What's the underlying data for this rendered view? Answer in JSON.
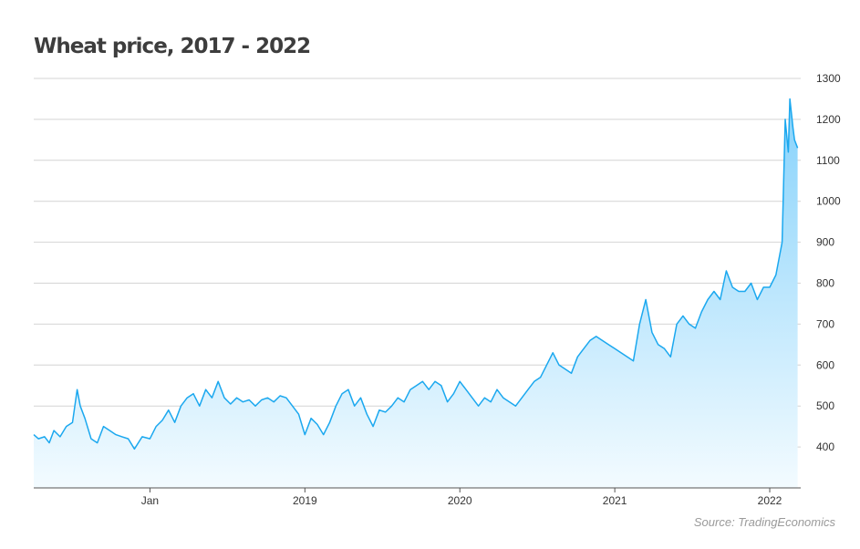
{
  "title": "Wheat price, 2017 - 2022",
  "source": "Source: TradingEconomics",
  "colors": {
    "line": "#1ba8ef",
    "fill_top": "#86d2fb",
    "fill_bottom": "#f3fbff",
    "grid": "#d4d4d4",
    "axis": "#555555"
  },
  "chart_data": {
    "type": "area",
    "grid": true,
    "y_axis_side": "right",
    "ylim": [
      300,
      1300
    ],
    "yticks": [
      400,
      500,
      600,
      700,
      800,
      900,
      1000,
      1100,
      1200,
      1300
    ],
    "x_tick_labels": [
      "Jan",
      "2019",
      "2020",
      "2021",
      "2022"
    ],
    "x_tick_dates": [
      2018.0,
      2019.0,
      2020.0,
      2021.0,
      2022.0
    ],
    "xlim": [
      2017.25,
      2022.2
    ],
    "series": [
      {
        "x": [
          2017.25,
          2017.28,
          2017.32,
          2017.35,
          2017.38,
          2017.42,
          2017.46,
          2017.5,
          2017.53,
          2017.55,
          2017.58,
          2017.62,
          2017.66,
          2017.7,
          2017.74,
          2017.78,
          2017.82,
          2017.86,
          2017.9,
          2017.95,
          2018.0,
          2018.04,
          2018.08,
          2018.12,
          2018.16,
          2018.2,
          2018.24,
          2018.28,
          2018.32,
          2018.36,
          2018.4,
          2018.44,
          2018.48,
          2018.52,
          2018.56,
          2018.6,
          2018.64,
          2018.68,
          2018.72,
          2018.76,
          2018.8,
          2018.84,
          2018.88,
          2018.92,
          2018.96,
          2019.0,
          2019.04,
          2019.08,
          2019.12,
          2019.16,
          2019.2,
          2019.24,
          2019.28,
          2019.32,
          2019.36,
          2019.4,
          2019.44,
          2019.48,
          2019.52,
          2019.56,
          2019.6,
          2019.64,
          2019.68,
          2019.72,
          2019.76,
          2019.8,
          2019.84,
          2019.88,
          2019.92,
          2019.96,
          2020.0,
          2020.04,
          2020.08,
          2020.12,
          2020.16,
          2020.2,
          2020.24,
          2020.28,
          2020.32,
          2020.36,
          2020.4,
          2020.44,
          2020.48,
          2020.52,
          2020.56,
          2020.6,
          2020.64,
          2020.68,
          2020.72,
          2020.76,
          2020.8,
          2020.84,
          2020.88,
          2020.92,
          2020.96,
          2021.0,
          2021.04,
          2021.08,
          2021.12,
          2021.16,
          2021.2,
          2021.24,
          2021.28,
          2021.32,
          2021.36,
          2021.4,
          2021.44,
          2021.48,
          2021.52,
          2021.56,
          2021.6,
          2021.64,
          2021.68,
          2021.72,
          2021.76,
          2021.8,
          2021.84,
          2021.88,
          2021.92,
          2021.96,
          2022.0,
          2022.04,
          2022.08,
          2022.1,
          2022.12,
          2022.13,
          2022.15,
          2022.16,
          2022.17,
          2022.18
        ],
        "y": [
          430,
          420,
          425,
          410,
          440,
          425,
          450,
          460,
          540,
          500,
          470,
          420,
          410,
          450,
          440,
          430,
          425,
          420,
          395,
          425,
          420,
          450,
          465,
          490,
          460,
          500,
          520,
          530,
          500,
          540,
          520,
          560,
          520,
          505,
          520,
          510,
          515,
          500,
          515,
          520,
          510,
          525,
          520,
          500,
          480,
          430,
          470,
          455,
          430,
          460,
          500,
          530,
          540,
          500,
          520,
          480,
          450,
          490,
          485,
          500,
          520,
          510,
          540,
          550,
          560,
          540,
          560,
          550,
          510,
          530,
          560,
          540,
          520,
          500,
          520,
          510,
          540,
          520,
          510,
          500,
          520,
          540,
          560,
          570,
          600,
          630,
          600,
          590,
          580,
          620,
          640,
          660,
          670,
          660,
          650,
          640,
          630,
          620,
          610,
          700,
          760,
          680,
          650,
          640,
          620,
          700,
          720,
          700,
          690,
          730,
          760,
          780,
          760,
          830,
          790,
          780,
          780,
          800,
          760,
          790,
          790,
          820,
          900,
          1200,
          1120,
          1250,
          1180,
          1150,
          1140,
          1130
        ]
      }
    ]
  }
}
